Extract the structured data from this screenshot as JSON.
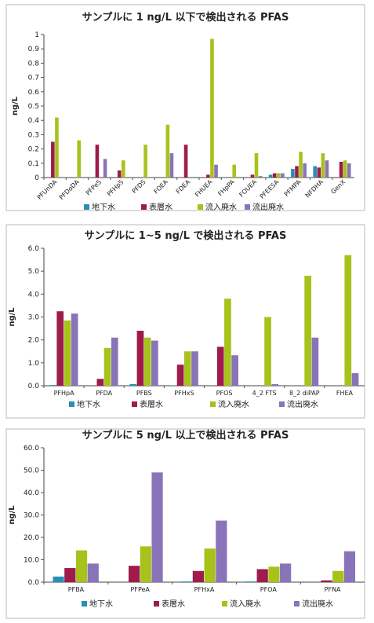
{
  "series_colors": [
    "#2a8fb3",
    "#9e1b4b",
    "#a7c21a",
    "#8a74b9"
  ],
  "chart_data": [
    {
      "type": "bar",
      "title": "サンプルに 1 ng/L 以下で検出される PFAS",
      "ylabel": "ng/L",
      "xlabel": "",
      "ylim": [
        0,
        1
      ],
      "yticks": [
        "0",
        "0.1",
        "0.2",
        "0.3",
        "0.4",
        "0.5",
        "0.6",
        "0.7",
        "0.8",
        "0.9",
        "1"
      ],
      "categories": [
        "PFUnDA",
        "PFDoDA",
        "PFPeS",
        "PFHpS",
        "PFDS",
        "FOEA",
        "FDEA",
        "FHUEA",
        "FHpPA",
        "FOUEA",
        "PFEESA",
        "PFMPA",
        "NFDHA",
        "GenX"
      ],
      "legend_position": "bottom",
      "series": [
        {
          "name": "地下水",
          "values": [
            0,
            0,
            0,
            0,
            0,
            0,
            0,
            0,
            0,
            0,
            0.02,
            0.06,
            0.08,
            0
          ]
        },
        {
          "name": "表層水",
          "values": [
            0.25,
            0,
            0.23,
            0.05,
            0,
            0,
            0.23,
            0.02,
            0,
            0.02,
            0.03,
            0.08,
            0.07,
            0.11
          ]
        },
        {
          "name": "流入廃水",
          "values": [
            0.42,
            0.26,
            0,
            0.12,
            0.23,
            0.37,
            0,
            0.97,
            0.09,
            0.17,
            0.03,
            0.18,
            0.17,
            0.12
          ]
        },
        {
          "name": "流出廃水",
          "values": [
            0,
            0,
            0.13,
            0,
            0,
            0.17,
            0,
            0.09,
            0,
            0.01,
            0.03,
            0.1,
            0.12,
            0.1
          ]
        }
      ]
    },
    {
      "type": "bar",
      "title": "サンプルに 1~5 ng/L で検出される PFAS",
      "ylabel": "ng/L",
      "xlabel": "",
      "ylim": [
        0,
        6
      ],
      "yticks": [
        "0.0",
        "1.0",
        "2.0",
        "3.0",
        "4.0",
        "5.0",
        "6.0"
      ],
      "categories": [
        "PFHpA",
        "PFDA",
        "PFBS",
        "PFHxS",
        "PFOS",
        "4_2 FTS",
        "8_2 diPAP",
        "FHEA"
      ],
      "legend_position": "bottom",
      "series": [
        {
          "name": "地下水",
          "values": [
            0.03,
            0,
            0.07,
            0.02,
            0,
            0,
            0,
            0
          ]
        },
        {
          "name": "表層水",
          "values": [
            3.25,
            0.3,
            2.4,
            0.92,
            1.7,
            0,
            0,
            0
          ]
        },
        {
          "name": "流入廃水",
          "values": [
            2.85,
            1.65,
            2.1,
            1.5,
            3.8,
            3.0,
            4.8,
            5.7
          ]
        },
        {
          "name": "流出廃水",
          "values": [
            3.15,
            2.1,
            1.97,
            1.5,
            1.33,
            0.07,
            2.1,
            0.55
          ]
        }
      ]
    },
    {
      "type": "bar",
      "title": "サンプルに 5 ng/L 以上で検出される PFAS",
      "ylabel": "ng/L",
      "xlabel": "",
      "ylim": [
        0,
        60
      ],
      "yticks": [
        "0.0",
        "10.0",
        "20.0",
        "30.0",
        "40.0",
        "50.0",
        "60.0"
      ],
      "categories": [
        "PFBA",
        "PFPeA",
        "PFHxA",
        "PFOA",
        "PFNA"
      ],
      "legend_position": "bottom",
      "series": [
        {
          "name": "地下水",
          "values": [
            2.5,
            0,
            0.3,
            0.3,
            0
          ]
        },
        {
          "name": "表層水",
          "values": [
            6.3,
            7.3,
            5.0,
            5.8,
            0.8
          ]
        },
        {
          "name": "流入廃水",
          "values": [
            14.2,
            16.0,
            15.0,
            6.9,
            5.0
          ]
        },
        {
          "name": "流出廃水",
          "values": [
            8.3,
            49.0,
            27.5,
            8.3,
            13.8
          ]
        }
      ]
    }
  ]
}
